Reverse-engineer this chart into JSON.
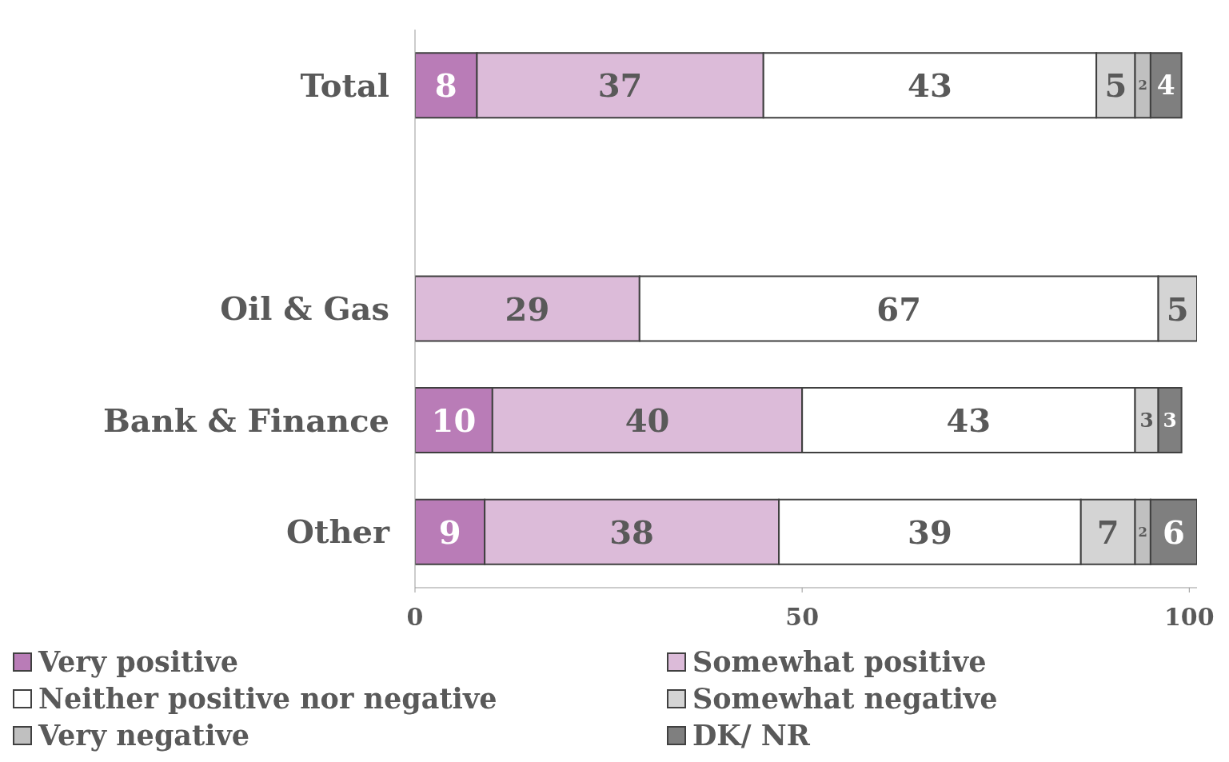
{
  "chart_data": {
    "type": "bar",
    "orientation": "horizontal",
    "stacked": true,
    "data_labels": true,
    "legend": "bottom",
    "grid": false,
    "categories": [
      "Total",
      null,
      "Oil & Gas",
      "Bank & Finance",
      "Other"
    ],
    "xlim": [
      0,
      101
    ],
    "xticks": [
      0,
      50,
      100
    ],
    "series": [
      {
        "name": "Very positive",
        "color": "#b97cb7",
        "values": [
          8,
          null,
          null,
          10,
          9
        ]
      },
      {
        "name": "Somewhat positive",
        "color": "#dcbbd9",
        "values": [
          37,
          null,
          29,
          40,
          38
        ]
      },
      {
        "name": "Neither positive nor negative",
        "color": "#ffffff",
        "values": [
          43,
          null,
          67,
          43,
          39
        ]
      },
      {
        "name": "Somewhat negative",
        "color": "#d4d4d4",
        "values": [
          5,
          null,
          5,
          3,
          7
        ]
      },
      {
        "name": "Very negative",
        "color": "#c0c0c0",
        "values": [
          2,
          null,
          null,
          null,
          2
        ]
      },
      {
        "name": "DK/ NR",
        "color": "#7f7f7f",
        "values": [
          4,
          null,
          null,
          3,
          6
        ]
      }
    ]
  }
}
